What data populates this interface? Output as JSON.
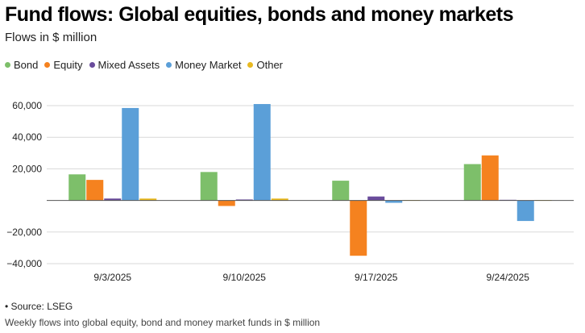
{
  "title": "Fund flows: Global equities, bonds and money markets",
  "subtitle": "Flows in $ million",
  "source": "• Source: LSEG",
  "caption": "Weekly flows into global equity, bond and money market funds in $ million",
  "chart_data": {
    "type": "bar",
    "categories": [
      "9/3/2025",
      "9/10/2025",
      "9/17/2025",
      "9/24/2025"
    ],
    "series": [
      {
        "name": "Bond",
        "color": "#7dbf6a",
        "values": [
          16500,
          18000,
          12500,
          23000
        ]
      },
      {
        "name": "Equity",
        "color": "#f5821f",
        "values": [
          13000,
          -3500,
          -35000,
          28500
        ]
      },
      {
        "name": "Mixed Assets",
        "color": "#6a4c9c",
        "values": [
          1200,
          600,
          2500,
          400
        ]
      },
      {
        "name": "Money Market",
        "color": "#5b9fd8",
        "values": [
          58500,
          61000,
          -1500,
          -13000
        ]
      },
      {
        "name": "Other",
        "color": "#e8b921",
        "values": [
          1200,
          1200,
          300,
          300
        ]
      }
    ],
    "ylim": [
      -40000,
      60000
    ],
    "yticks": [
      -40000,
      -20000,
      0,
      20000,
      40000,
      60000
    ],
    "ytick_labels": [
      "−40,000",
      "−20,000",
      "",
      "20,000",
      "40,000",
      "60,000"
    ],
    "grid": true,
    "legend": "top-left"
  }
}
